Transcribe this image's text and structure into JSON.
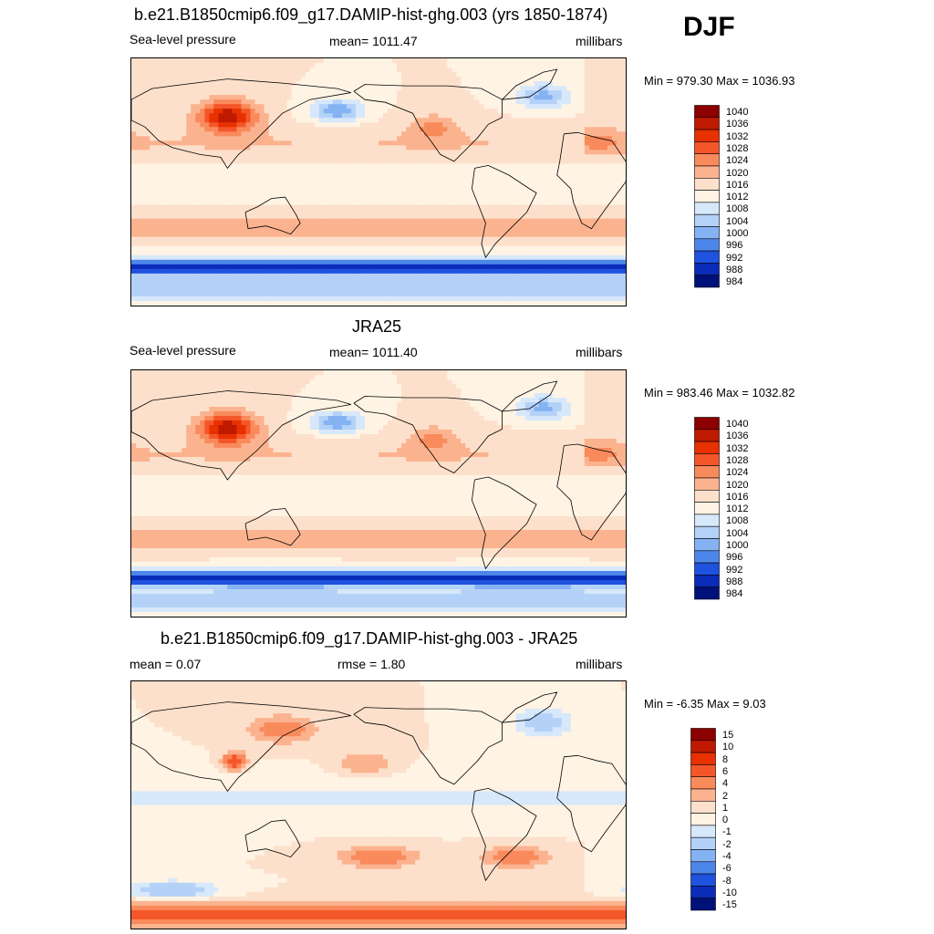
{
  "season": "DJF",
  "panels": [
    {
      "title": "b.e21.B1850cmip6.f09_g17.DAMIP-hist-ghg.003 (yrs 1850-1874)",
      "left_label": "Sea-level pressure",
      "center_label": "mean= 1011.47",
      "right_label": "millibars",
      "minmax": "Min = 979.30 Max = 1036.93"
    },
    {
      "title": "JRA25",
      "left_label": "Sea-level pressure",
      "center_label": "mean= 1011.40",
      "right_label": "millibars",
      "minmax": "Min = 983.46 Max = 1032.82"
    },
    {
      "title": "b.e21.B1850cmip6.f09_g17.DAMIP-hist-ghg.003 - JRA25",
      "left_label": "mean =   0.07",
      "center_label": "rmse =    1.80",
      "right_label": "millibars",
      "minmax": "Min =  -6.35 Max =   9.03"
    }
  ],
  "chart_data": [
    {
      "type": "heatmap",
      "title": "b.e21.B1850cmip6.f09_g17.DAMIP-hist-ghg.003 (yrs 1850-1874)",
      "variable": "Sea-level pressure",
      "units": "millibars",
      "mean": 1011.47,
      "min": 979.3,
      "max": 1036.93,
      "colorbar_levels": [
        "1040",
        "1036",
        "1032",
        "1028",
        "1024",
        "1020",
        "1016",
        "1012",
        "1008",
        "1004",
        "1000",
        "996",
        "992",
        "988",
        "984"
      ],
      "colorbar_colors": [
        "#8c0000",
        "#bf1a00",
        "#e83000",
        "#f4562a",
        "#f98a5c",
        "#fbb38f",
        "#fde0cb",
        "#fff3e4",
        "#d7e8fb",
        "#b4d2f8",
        "#85b2f2",
        "#4d86ea",
        "#1f52de",
        "#0a2cb8",
        "#00117a"
      ]
    },
    {
      "type": "heatmap",
      "title": "JRA25",
      "variable": "Sea-level pressure",
      "units": "millibars",
      "mean": 1011.4,
      "min": 983.46,
      "max": 1032.82,
      "colorbar_levels": [
        "1040",
        "1036",
        "1032",
        "1028",
        "1024",
        "1020",
        "1016",
        "1012",
        "1008",
        "1004",
        "1000",
        "996",
        "992",
        "988",
        "984"
      ],
      "colorbar_colors": [
        "#8c0000",
        "#bf1a00",
        "#e83000",
        "#f4562a",
        "#f98a5c",
        "#fbb38f",
        "#fde0cb",
        "#fff3e4",
        "#d7e8fb",
        "#b4d2f8",
        "#85b2f2",
        "#4d86ea",
        "#1f52de",
        "#0a2cb8",
        "#00117a"
      ]
    },
    {
      "type": "heatmap",
      "title": "b.e21.B1850cmip6.f09_g17.DAMIP-hist-ghg.003 - JRA25",
      "units": "millibars",
      "mean": 0.07,
      "rmse": 1.8,
      "min": -6.35,
      "max": 9.03,
      "colorbar_levels": [
        "15",
        "10",
        "8",
        "6",
        "4",
        "2",
        "1",
        "0",
        "-1",
        "-2",
        "-4",
        "-6",
        "-8",
        "-10",
        "-15"
      ],
      "colorbar_colors": [
        "#8c0000",
        "#bf1a00",
        "#e83000",
        "#f4562a",
        "#f98a5c",
        "#fbb38f",
        "#fde0cb",
        "#fff3e4",
        "#d7e8fb",
        "#b4d2f8",
        "#85b2f2",
        "#4d86ea",
        "#1f52de",
        "#0a2cb8",
        "#00117a"
      ]
    }
  ]
}
